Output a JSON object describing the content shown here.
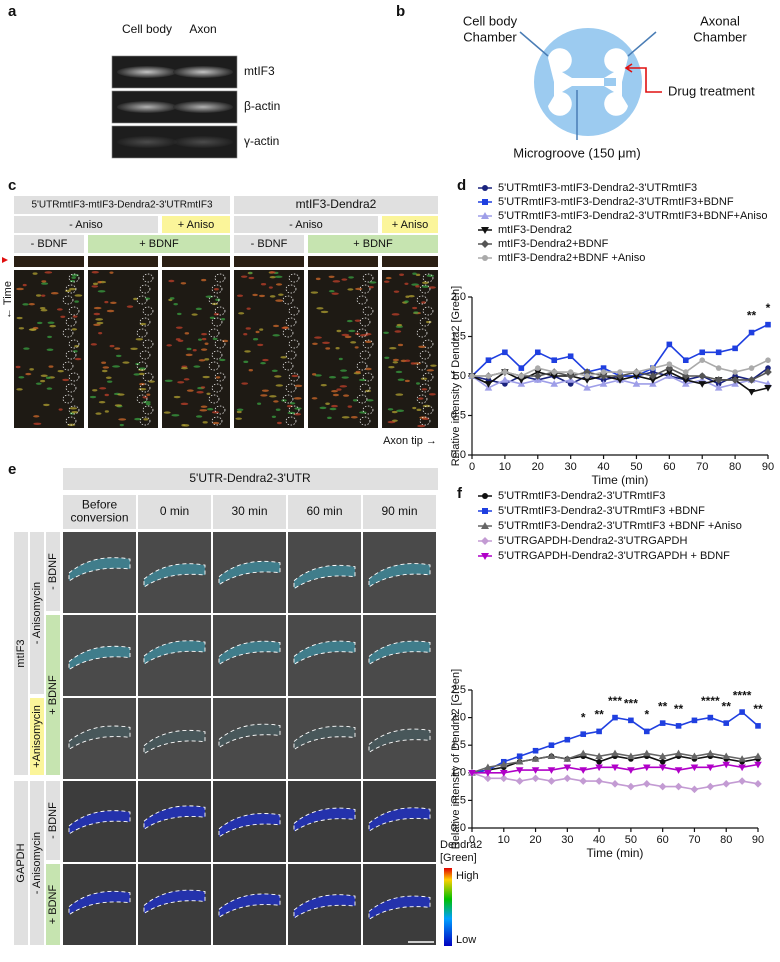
{
  "panel_a": {
    "label": "a",
    "lanes": [
      "Cell body",
      "Axon"
    ],
    "bands": [
      "mtIF3",
      "β-actin",
      "γ-actin"
    ]
  },
  "panel_b": {
    "label": "b",
    "cell_body_chamber": [
      "Cell body",
      "Chamber"
    ],
    "axonal_chamber": [
      "Axonal",
      "Chamber"
    ],
    "drug": "Drug treatment",
    "microgroove": "Microgroove (150 μm)"
  },
  "panel_c": {
    "label": "c",
    "constructs": [
      "5'UTRmtIF3-mtIF3-Dendra2-3'UTRmtIF3",
      "mtIF3-Dendra2"
    ],
    "aniso": [
      "- Aniso",
      "+ Aniso",
      "- Aniso",
      "+ Aniso"
    ],
    "bdnf": [
      "- BDNF",
      "+ BDNF",
      "- BDNF",
      "+ BDNF"
    ],
    "time": "← Time",
    "axon_tip": "Axon tip →"
  },
  "panel_e": {
    "label": "e",
    "construct": "5'UTR-Dendra2-3'UTR",
    "columns": [
      [
        "Before",
        "conversion"
      ],
      [
        "0 min"
      ],
      [
        "30 min"
      ],
      [
        "60 min"
      ],
      [
        "90 min"
      ]
    ],
    "genes": [
      "mtIF3",
      "GAPDH"
    ],
    "treatments": [
      "- Anisomycin",
      "+Anisomycin",
      "- Anisomycin"
    ],
    "bdnf": [
      "- BDNF",
      "+ BDNF",
      "- BDNF",
      "+ BDNF"
    ],
    "colorbar": {
      "title": [
        "Dendra2",
        "[Green]"
      ],
      "high": "High",
      "low": "Low"
    }
  },
  "chart_data": [
    {
      "type": "line",
      "label": "d",
      "xlabel": "Time (min)",
      "ylabel": "Relative intensity of Dendra2 [Green]",
      "x": [
        0,
        5,
        10,
        15,
        20,
        25,
        30,
        35,
        40,
        45,
        50,
        55,
        60,
        65,
        70,
        75,
        80,
        85,
        90
      ],
      "xlim": [
        0,
        90
      ],
      "xticks": [
        0,
        10,
        20,
        30,
        40,
        50,
        60,
        70,
        80,
        90
      ],
      "ylim": [
        0,
        2
      ],
      "yticks": [
        {
          "value": 0,
          "label": "0.0"
        },
        0.5,
        {
          "value": 1,
          "label": "1.0"
        },
        1.5,
        {
          "value": 2,
          "label": "2.0"
        }
      ],
      "series": [
        {
          "name": "5'UTRmtIF3-mtIF3-Dendra2-3'UTRmtIF3",
          "color": "#1a237e",
          "marker": "circle",
          "values": [
            1.0,
            0.95,
            0.9,
            1.0,
            0.95,
            1.0,
            0.9,
            1.0,
            0.95,
            1.0,
            1.0,
            1.05,
            1.0,
            0.95,
            1.0,
            0.9,
            1.0,
            0.95,
            1.1
          ]
        },
        {
          "name": "5'UTRmtIF3-mtIF3-Dendra2-3'UTRmtIF3+BDNF",
          "color": "#1f3fe0",
          "marker": "square",
          "values": [
            1.0,
            1.2,
            1.3,
            1.1,
            1.3,
            1.2,
            1.25,
            1.05,
            1.1,
            1.0,
            1.0,
            1.1,
            1.4,
            1.2,
            1.3,
            1.3,
            1.35,
            1.55,
            1.65
          ]
        },
        {
          "name": "5'UTRmtIF3-mtIF3-Dendra2-3'UTRmtIF3+BDNF+Aniso",
          "color": "#9e9ee8",
          "marker": "triangle",
          "values": [
            1.0,
            0.85,
            0.95,
            0.9,
            0.95,
            0.9,
            0.95,
            0.85,
            0.9,
            0.95,
            0.9,
            0.9,
            1.0,
            0.9,
            0.95,
            0.85,
            0.9,
            0.95,
            0.9
          ]
        },
        {
          "name": "mtIF3-Dendra2",
          "color": "#111111",
          "marker": "triangle-down",
          "values": [
            1.0,
            0.9,
            1.05,
            0.95,
            1.05,
            1.0,
            1.0,
            0.95,
            1.0,
            0.95,
            1.0,
            0.95,
            1.05,
            0.95,
            0.9,
            0.95,
            0.95,
            0.8,
            0.85
          ]
        },
        {
          "name": "mtIF3-Dendra2+BDNF",
          "color": "#555555",
          "marker": "diamond",
          "values": [
            1.0,
            1.0,
            1.05,
            1.0,
            1.0,
            1.05,
            1.0,
            1.05,
            1.0,
            1.0,
            1.05,
            1.0,
            1.1,
            1.0,
            1.0,
            0.95,
            0.95,
            0.95,
            1.05
          ]
        },
        {
          "name": "mtIF3-Dendra2+BDNF +Aniso",
          "color": "#aaaaaa",
          "marker": "circle",
          "values": [
            1.0,
            1.0,
            1.05,
            1.0,
            1.1,
            1.05,
            1.05,
            1.0,
            1.05,
            1.05,
            1.05,
            1.1,
            1.15,
            1.05,
            1.2,
            1.1,
            1.05,
            1.1,
            1.2
          ]
        }
      ],
      "annotations": [
        {
          "x": 85,
          "text": "**"
        },
        {
          "x": 90,
          "text": "*"
        }
      ]
    },
    {
      "type": "line",
      "label": "f",
      "xlabel": "Time (min)",
      "ylabel": "Relative intensity of Dendra2 [Green]",
      "x": [
        0,
        5,
        10,
        15,
        20,
        25,
        30,
        35,
        40,
        45,
        50,
        55,
        60,
        65,
        70,
        75,
        80,
        85,
        90
      ],
      "xlim": [
        0,
        90
      ],
      "xticks": [
        0,
        10,
        20,
        30,
        40,
        50,
        60,
        70,
        80,
        90
      ],
      "ylim": [
        0,
        2.5
      ],
      "yticks": [
        {
          "value": 0,
          "label": "0.0"
        },
        0.5,
        {
          "value": 1,
          "label": "1.0"
        },
        1.5,
        {
          "value": 2,
          "label": "2.0"
        },
        2.5
      ],
      "series": [
        {
          "name": "5'UTRmtIF3-Dendra2-3'UTRmtIF3",
          "color": "#111111",
          "marker": "circle",
          "values": [
            1.0,
            1.05,
            1.1,
            1.2,
            1.25,
            1.3,
            1.25,
            1.3,
            1.2,
            1.3,
            1.25,
            1.3,
            1.2,
            1.3,
            1.25,
            1.3,
            1.25,
            1.2,
            1.25
          ]
        },
        {
          "name": "5'UTRmtIF3-Dendra2-3'UTRmtIF3 +BDNF",
          "color": "#1f3fe0",
          "marker": "square",
          "values": [
            1.0,
            1.05,
            1.2,
            1.3,
            1.4,
            1.5,
            1.6,
            1.7,
            1.75,
            2.0,
            1.95,
            1.75,
            1.9,
            1.85,
            1.95,
            2.0,
            1.9,
            2.1,
            1.85
          ]
        },
        {
          "name": "5'UTRmtIF3-Dendra2-3'UTRmtIF3 +BDNF +Aniso",
          "color": "#666666",
          "marker": "triangle",
          "values": [
            1.0,
            1.1,
            1.15,
            1.2,
            1.25,
            1.3,
            1.25,
            1.35,
            1.3,
            1.35,
            1.3,
            1.35,
            1.3,
            1.35,
            1.3,
            1.35,
            1.3,
            1.25,
            1.3
          ]
        },
        {
          "name": "5'UTRGAPDH-Dendra2-3'UTRGAPDH",
          "color": "#c39bd3",
          "marker": "diamond",
          "values": [
            1.0,
            0.9,
            0.9,
            0.85,
            0.9,
            0.85,
            0.9,
            0.85,
            0.85,
            0.8,
            0.75,
            0.8,
            0.75,
            0.75,
            0.7,
            0.75,
            0.8,
            0.85,
            0.8
          ]
        },
        {
          "name": "5'UTRGAPDH-Dendra2-3'UTRGAPDH + BDNF",
          "color": "#b000c8",
          "marker": "triangle-down",
          "values": [
            1.0,
            1.0,
            1.0,
            1.05,
            1.05,
            1.05,
            1.1,
            1.05,
            1.1,
            1.1,
            1.05,
            1.1,
            1.1,
            1.05,
            1.1,
            1.1,
            1.15,
            1.1,
            1.15
          ]
        }
      ],
      "annotations": [
        {
          "x": 35,
          "text": "*"
        },
        {
          "x": 40,
          "text": "**"
        },
        {
          "x": 45,
          "text": "***"
        },
        {
          "x": 50,
          "text": "***"
        },
        {
          "x": 55,
          "text": "*"
        },
        {
          "x": 60,
          "text": "**"
        },
        {
          "x": 65,
          "text": "**"
        },
        {
          "x": 75,
          "text": "****"
        },
        {
          "x": 80,
          "text": "**"
        },
        {
          "x": 85,
          "text": "****"
        },
        {
          "x": 90,
          "text": "**"
        }
      ]
    }
  ]
}
